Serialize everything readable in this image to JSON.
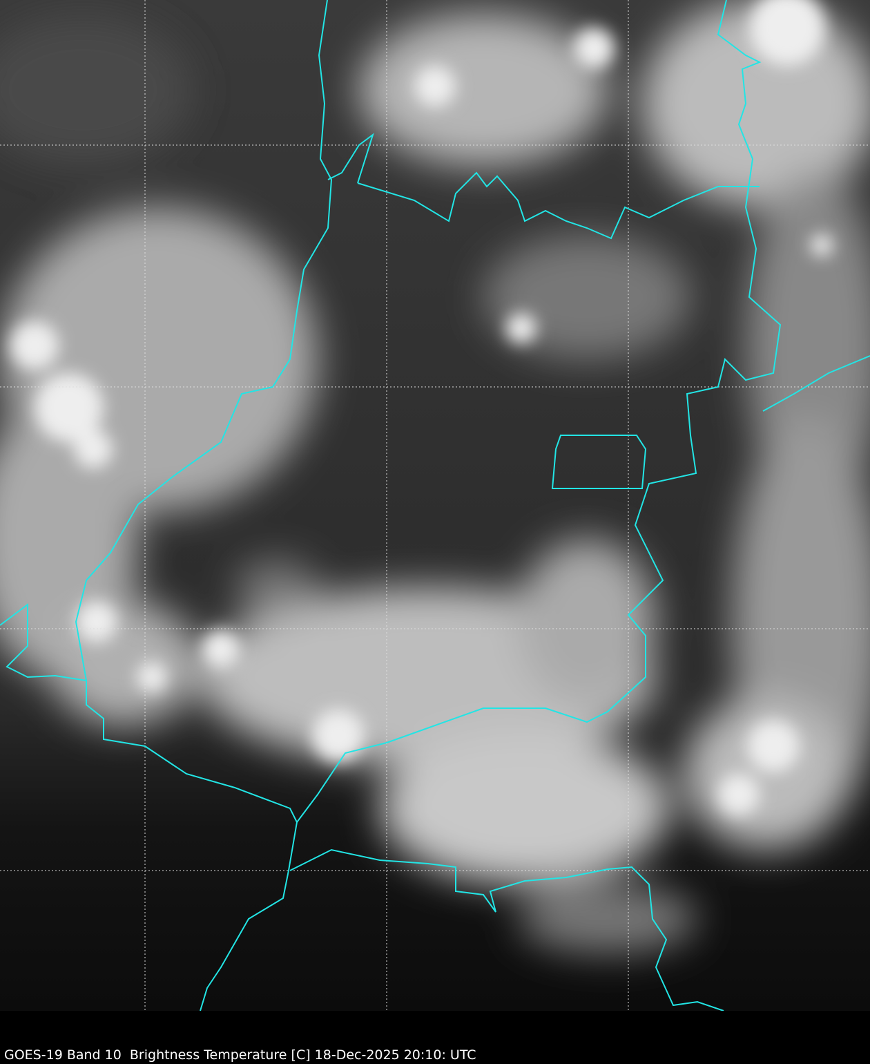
{
  "caption": "GOES-19 Band 10  Brightness Temperature [C] 18-Dec-2025 20:10: UTC",
  "colors": {
    "background": "#000000",
    "border_lines": "#22e5e5",
    "grid_lines": "#dddddd",
    "cloud": "#e8e8e8"
  },
  "map": {
    "imagery": "infrared brightness temperature, grayscale",
    "gridlines": "dashed",
    "borders": "cyan"
  }
}
